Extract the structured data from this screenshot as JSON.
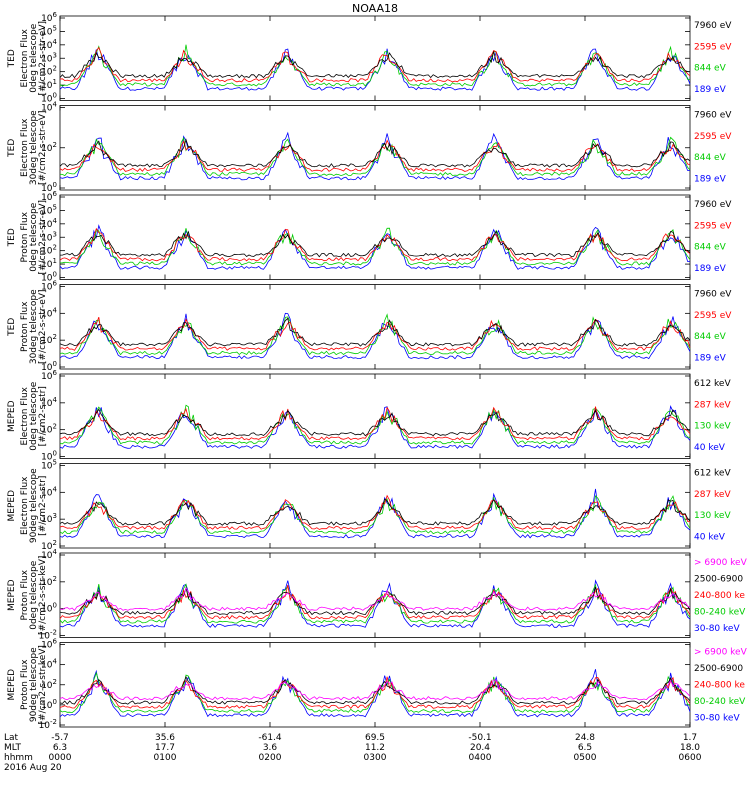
{
  "chart_data": {
    "type": "line",
    "title": "NOAA18",
    "x_ticks": [
      {
        "lat": "-5.7",
        "mlt": "6.3",
        "hhmm": "0000"
      },
      {
        "lat": "35.6",
        "mlt": "17.7",
        "hhmm": "0100"
      },
      {
        "lat": "-61.4",
        "mlt": "3.6",
        "hhmm": "0200"
      },
      {
        "lat": "69.5",
        "mlt": "11.2",
        "hhmm": "0300"
      },
      {
        "lat": "-50.1",
        "mlt": "20.4",
        "hhmm": "0400"
      },
      {
        "lat": "24.8",
        "mlt": "6.5",
        "hhmm": "0500"
      },
      {
        "lat": "1.7",
        "mlt": "18.0",
        "hhmm": "0600"
      }
    ],
    "row_labels": [
      "Lat",
      "MLT",
      "hhmm"
    ],
    "date": "2016 Aug 20",
    "xlim": [
      "0000",
      "0600"
    ],
    "panels": [
      {
        "instrument": "TED",
        "ylabel": [
          "Electron Flux",
          "0deg telescope",
          "[#/cm2-s-str-eV]"
        ],
        "yticks": [
          "10^0",
          "10^1",
          "10^2",
          "10^3",
          "10^4",
          "10^5",
          "10^6"
        ],
        "legend": [
          {
            "label": "7960 eV",
            "color": "#000000"
          },
          {
            "label": "2595 eV",
            "color": "#ff0000"
          },
          {
            "label": "844 eV",
            "color": "#00cc00"
          },
          {
            "label": "189 eV",
            "color": "#0000ff"
          }
        ]
      },
      {
        "instrument": "TED",
        "ylabel": [
          "Electron Flux",
          "30deg telescope",
          "[#/cm2-s-str-eV]"
        ],
        "yticks": [
          "10^0",
          "10^2",
          "10^4"
        ],
        "legend": [
          {
            "label": "7960 eV",
            "color": "#000000"
          },
          {
            "label": "2595 eV",
            "color": "#ff0000"
          },
          {
            "label": "844 eV",
            "color": "#00cc00"
          },
          {
            "label": "189 eV",
            "color": "#0000ff"
          }
        ]
      },
      {
        "instrument": "TED",
        "ylabel": [
          "Proton Flux",
          "0deg telescope",
          "[#/cm2-s-str-eV]"
        ],
        "yticks": [
          "10^0",
          "10^1",
          "10^2",
          "10^3",
          "10^4",
          "10^5",
          "10^6"
        ],
        "legend": [
          {
            "label": "7960 eV",
            "color": "#000000"
          },
          {
            "label": "2595 eV",
            "color": "#ff0000"
          },
          {
            "label": "844 eV",
            "color": "#00cc00"
          },
          {
            "label": "189 eV",
            "color": "#0000ff"
          }
        ]
      },
      {
        "instrument": "TED",
        "ylabel": [
          "Proton Flux",
          "30deg telescope",
          "[#/cm2-s-str-eV]"
        ],
        "yticks": [
          "10^0",
          "10^2",
          "10^4",
          "10^6"
        ],
        "legend": [
          {
            "label": "7960 eV",
            "color": "#000000"
          },
          {
            "label": "2595 eV",
            "color": "#ff0000"
          },
          {
            "label": "844 eV",
            "color": "#00cc00"
          },
          {
            "label": "189 eV",
            "color": "#0000ff"
          }
        ]
      },
      {
        "instrument": "MEPED",
        "ylabel": [
          "Electron Flux",
          "0deg telescope",
          "[#/cm2-s-str]"
        ],
        "yticks": [
          "10^0",
          "10^2",
          "10^4",
          "10^6"
        ],
        "legend": [
          {
            "label": "612 keV",
            "color": "#000000"
          },
          {
            "label": "287 keV",
            "color": "#ff0000"
          },
          {
            "label": "130 keV",
            "color": "#00cc00"
          },
          {
            "label": "40 keV",
            "color": "#0000ff"
          }
        ]
      },
      {
        "instrument": "MEPED",
        "ylabel": [
          "Electron Flux",
          "90deg telescope",
          "[#/cm2-s-str]"
        ],
        "yticks": [
          "10^2",
          "10^3",
          "10^4",
          "10^5"
        ],
        "legend": [
          {
            "label": "612 keV",
            "color": "#000000"
          },
          {
            "label": "287 keV",
            "color": "#ff0000"
          },
          {
            "label": "130 keV",
            "color": "#00cc00"
          },
          {
            "label": "40 keV",
            "color": "#0000ff"
          }
        ]
      },
      {
        "instrument": "MEPED",
        "ylabel": [
          "Proton Flux",
          "0deg telescope",
          "[#/cm2-s-str-keV]"
        ],
        "yticks": [
          "10^-2",
          "10^0",
          "10^2",
          "10^4"
        ],
        "legend": [
          {
            "label": "> 6900 keV",
            "color": "#ff00ff"
          },
          {
            "label": "2500-6900",
            "color": "#000000"
          },
          {
            "label": "240-800 ke",
            "color": "#ff0000"
          },
          {
            "label": "80-240 keV",
            "color": "#00cc00"
          },
          {
            "label": "30-80 keV",
            "color": "#0000ff"
          }
        ]
      },
      {
        "instrument": "MEPED",
        "ylabel": [
          "Proton Flux",
          "90deg telescope",
          "[#/cm2-s-str-keV]"
        ],
        "yticks": [
          "10^-2",
          "10^0",
          "10^2",
          "10^4",
          "10^6"
        ],
        "legend": [
          {
            "label": "> 6900 keV",
            "color": "#ff00ff"
          },
          {
            "label": "2500-6900",
            "color": "#000000"
          },
          {
            "label": "240-800 ke",
            "color": "#ff0000"
          },
          {
            "label": "80-240 keV",
            "color": "#00cc00"
          },
          {
            "label": "30-80 keV",
            "color": "#0000ff"
          }
        ]
      }
    ]
  }
}
